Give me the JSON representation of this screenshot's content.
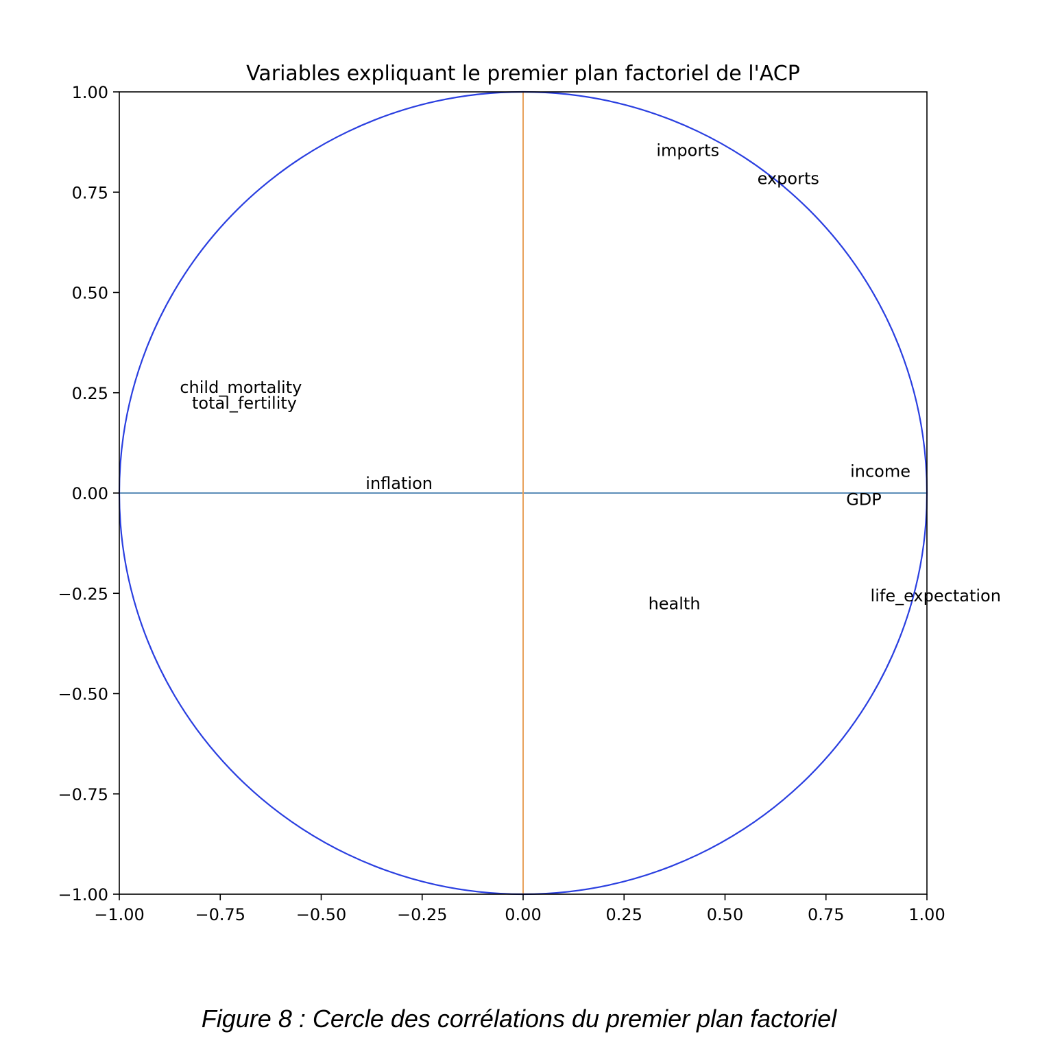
{
  "caption": "Figure 8 : Cercle des corrélations du premier plan factoriel",
  "chart_data": {
    "type": "scatter",
    "title": "Variables expliquant le premier plan factoriel de l'ACP",
    "xlabel": "",
    "ylabel": "",
    "xlim": [
      -1.0,
      1.0
    ],
    "ylim": [
      -1.0,
      1.0
    ],
    "grid": false,
    "xticks": [
      "−1.00",
      "−0.75",
      "−0.50",
      "−0.25",
      "0.00",
      "0.25",
      "0.50",
      "0.75",
      "1.00"
    ],
    "yticks": [
      "1.00",
      "0.75",
      "0.50",
      "0.25",
      "0.00",
      "−0.25",
      "−0.50",
      "−0.75",
      "−1.00"
    ],
    "xtick_values": [
      -1.0,
      -0.75,
      -0.5,
      -0.25,
      0.0,
      0.25,
      0.5,
      0.75,
      1.0
    ],
    "ytick_values": [
      1.0,
      0.75,
      0.5,
      0.25,
      0.0,
      -0.25,
      -0.5,
      -0.75,
      -1.0
    ],
    "unit_circle": {
      "radius": 1.0,
      "color": "#2a3fe0"
    },
    "reference_lines": [
      {
        "orientation": "horizontal",
        "value": 0.0,
        "color": "#5b8db8"
      },
      {
        "orientation": "vertical",
        "value": 0.0,
        "color": "#e8a05a"
      }
    ],
    "points": [
      {
        "label": "imports",
        "x": 0.33,
        "y": 0.84
      },
      {
        "label": "exports",
        "x": 0.58,
        "y": 0.77
      },
      {
        "label": "child_mortality",
        "x": -0.85,
        "y": 0.25
      },
      {
        "label": "total_fertility",
        "x": -0.82,
        "y": 0.21
      },
      {
        "label": "inflation",
        "x": -0.39,
        "y": 0.01
      },
      {
        "label": "income",
        "x": 0.81,
        "y": 0.04
      },
      {
        "label": "GDP",
        "x": 0.8,
        "y": -0.03
      },
      {
        "label": "health",
        "x": 0.31,
        "y": -0.29
      },
      {
        "label": "life_expectation",
        "x": 0.86,
        "y": -0.27
      }
    ]
  }
}
